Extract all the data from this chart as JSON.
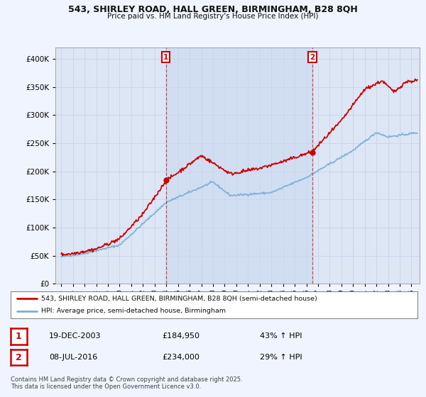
{
  "title": "543, SHIRLEY ROAD, HALL GREEN, BIRMINGHAM, B28 8QH",
  "subtitle": "Price paid vs. HM Land Registry's House Price Index (HPI)",
  "bg_color": "#f0f4ff",
  "plot_bg_color": "#dce6f5",
  "grid_color": "#c8d4e8",
  "red_line_color": "#cc0000",
  "blue_line_color": "#7bafd4",
  "shade_color": "#c8d8ee",
  "marker1_date_x": 2003.97,
  "marker1_price": 184950,
  "marker2_date_x": 2016.52,
  "marker2_price": 234000,
  "sale1_label": "1",
  "sale1_date": "19-DEC-2003",
  "sale1_price": "£184,950",
  "sale1_hpi": "43% ↑ HPI",
  "sale2_label": "2",
  "sale2_date": "08-JUL-2016",
  "sale2_price": "£234,000",
  "sale2_hpi": "29% ↑ HPI",
  "legend_line1": "543, SHIRLEY ROAD, HALL GREEN, BIRMINGHAM, B28 8QH (semi-detached house)",
  "legend_line2": "HPI: Average price, semi-detached house, Birmingham",
  "copyright_text": "Contains HM Land Registry data © Crown copyright and database right 2025.\nThis data is licensed under the Open Government Licence v3.0.",
  "ylim": [
    0,
    420000
  ],
  "xlim_start": 1994.5,
  "xlim_end": 2025.7
}
